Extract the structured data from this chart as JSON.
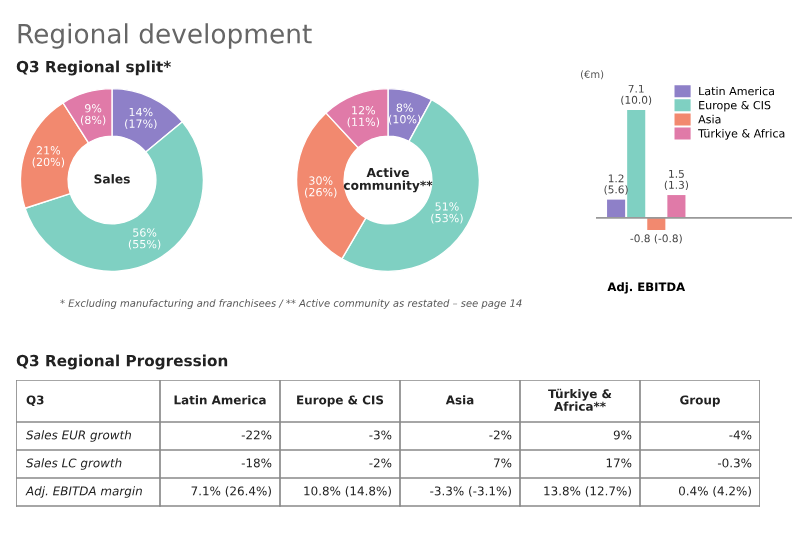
{
  "chart_data": [
    {
      "type": "donut",
      "title": "Sales",
      "annotations": [
        "Regional development",
        "Q3 Regional split*",
        "* Excluding manufacturing and franchisees / ** Active community as restated – see page 14"
      ],
      "categories": [
        null,
        null,
        null,
        null
      ],
      "values": [
        14,
        56,
        21,
        9
      ],
      "colors": [
        "#8e80c8",
        "#7fd0c2",
        "#f2896f",
        "#e07aa8"
      ],
      "value_labels": [
        "14%\n(17%)",
        "56%\n(55%)",
        "21%\n(20%)",
        "9%\n(8%)"
      ]
    },
    {
      "type": "donut",
      "title": "Active\ncommunity**",
      "categories": [
        null,
        null,
        null,
        null
      ],
      "values": [
        8,
        51,
        30,
        12
      ],
      "colors": [
        "#8e80c8",
        "#7fd0c2",
        "#f2896f",
        "#e07aa8"
      ],
      "value_labels": [
        "8%\n(10%)",
        "51%\n(53%)",
        "30%\n(26%)",
        "12%\n(11%)"
      ]
    },
    {
      "type": "bar",
      "ylabel": "(€m)",
      "categories": [
        "Adj. EBITDA"
      ],
      "legend": "top right",
      "series": [
        {
          "name": "Latin America",
          "color": "#8e80c8",
          "values": [
            1.2
          ],
          "value_labels": [
            "1.2\n(5.6)"
          ]
        },
        {
          "name": "Europe & CIS",
          "color": "#7fd0c2",
          "values": [
            7.1
          ],
          "value_labels": [
            "7.1\n(10.0)"
          ]
        },
        {
          "name": "Asia",
          "color": "#f2896f",
          "values": [
            -0.8
          ],
          "value_labels": [
            "-0.8 (-0.8)"
          ]
        },
        {
          "name": "Türkiye & Africa",
          "color": "#e07aa8",
          "values": [
            1.5
          ],
          "value_labels": [
            "1.5\n(1.3)"
          ]
        }
      ]
    },
    {
      "type": "other",
      "title": "Q3 Regional Progression",
      "categories": [
        "Q3",
        "Latin America",
        "Europe & CIS",
        "Asia",
        "Türkiye &\nAfrica**",
        "Group"
      ],
      "y_categories": [
        "Sales EUR growth",
        "Sales LC growth",
        "Adj. EBITDA margin"
      ],
      "cell_labels": [
        [
          "-22%",
          "-3%",
          "-2%",
          "9%",
          "-4%"
        ],
        [
          "-18%",
          "-2%",
          "7%",
          "17%",
          "-0.3%"
        ],
        [
          "7.1% (26.4%)",
          "10.8% (14.8%)",
          "-3.3% (-3.1%)",
          "13.8% (12.7%)",
          "0.4% (4.2%)"
        ]
      ]
    }
  ]
}
